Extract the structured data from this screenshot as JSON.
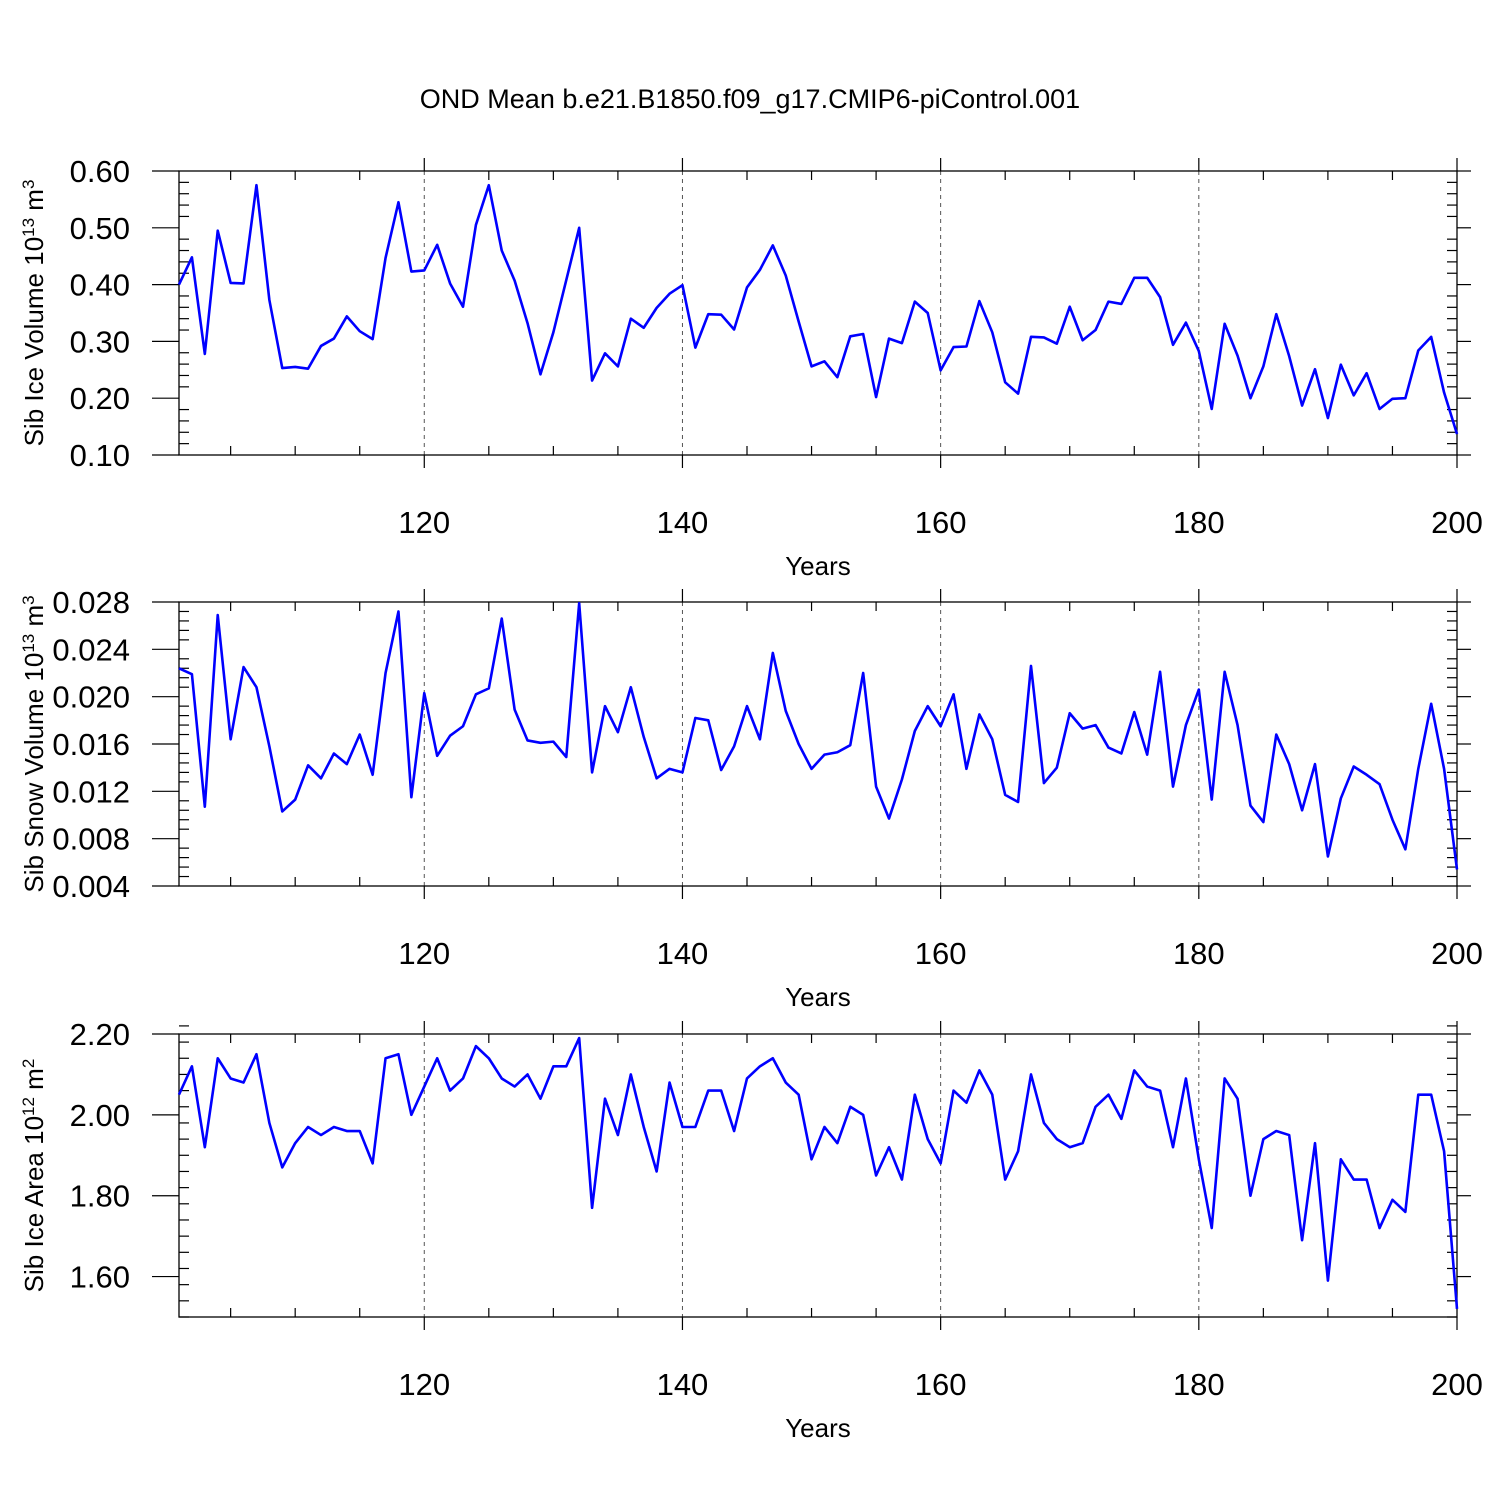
{
  "title": "OND Mean b.e21.B1850.f09_g17.CMIP6-piControl.001",
  "chart_data": [
    {
      "type": "line",
      "xlabel": "Years",
      "ylabel": "Sib Ice Volume 10",
      "ylabel_exp": "13",
      "ylabel_unit": "m",
      "ylabel_unit_exp": "3",
      "xlim": [
        101,
        200
      ],
      "ylim": [
        0.1,
        0.6
      ],
      "xticks": [
        120,
        140,
        160,
        180,
        200
      ],
      "yticks": [
        "0.10",
        "0.20",
        "0.30",
        "0.40",
        "0.50",
        "0.60"
      ],
      "x_start": 101,
      "series": [
        {
          "color": "#0000ff",
          "values": [
            0.4,
            0.448,
            0.278,
            0.495,
            0.403,
            0.402,
            0.575,
            0.373,
            0.253,
            0.255,
            0.252,
            0.292,
            0.305,
            0.344,
            0.318,
            0.304,
            0.447,
            0.545,
            0.423,
            0.425,
            0.47,
            0.402,
            0.361,
            0.505,
            0.575,
            0.46,
            0.407,
            0.332,
            0.242,
            0.316,
            0.408,
            0.5,
            0.231,
            0.279,
            0.256,
            0.34,
            0.324,
            0.359,
            0.384,
            0.399,
            0.289,
            0.348,
            0.347,
            0.321,
            0.395,
            0.426,
            0.469,
            0.416,
            0.335,
            0.256,
            0.265,
            0.237,
            0.309,
            0.313,
            0.202,
            0.305,
            0.297,
            0.37,
            0.35,
            0.249,
            0.29,
            0.291,
            0.371,
            0.316,
            0.228,
            0.208,
            0.308,
            0.307,
            0.296,
            0.361,
            0.302,
            0.32,
            0.37,
            0.366,
            0.412,
            0.412,
            0.378,
            0.294,
            0.333,
            0.283,
            0.181,
            0.331,
            0.275,
            0.2,
            0.256,
            0.348,
            0.274,
            0.187,
            0.251,
            0.165,
            0.259,
            0.205,
            0.244,
            0.181,
            0.199,
            0.2,
            0.284,
            0.308,
            0.21,
            0.137
          ]
        }
      ]
    },
    {
      "type": "line",
      "xlabel": "Years",
      "ylabel": "Sib Snow Volume 10",
      "ylabel_exp": "13",
      "ylabel_unit": "m",
      "ylabel_unit_exp": "3",
      "xlim": [
        101,
        200
      ],
      "ylim": [
        0.004,
        0.028
      ],
      "xticks": [
        120,
        140,
        160,
        180,
        200
      ],
      "yticks": [
        "0.004",
        "0.008",
        "0.012",
        "0.016",
        "0.020",
        "0.024",
        "0.028"
      ],
      "x_start": 101,
      "series": [
        {
          "color": "#0000ff",
          "values": [
            0.0224,
            0.0219,
            0.0107,
            0.0269,
            0.0164,
            0.0225,
            0.0208,
            0.0158,
            0.0103,
            0.0113,
            0.0142,
            0.0131,
            0.0152,
            0.0143,
            0.0168,
            0.0134,
            0.022,
            0.0272,
            0.0115,
            0.0203,
            0.015,
            0.0167,
            0.0175,
            0.0202,
            0.0207,
            0.0266,
            0.0189,
            0.0163,
            0.0161,
            0.0162,
            0.0149,
            0.0279,
            0.0136,
            0.0192,
            0.017,
            0.0208,
            0.0166,
            0.0131,
            0.0139,
            0.0136,
            0.0182,
            0.018,
            0.0138,
            0.0158,
            0.0192,
            0.0164,
            0.0237,
            0.0188,
            0.016,
            0.0139,
            0.0151,
            0.0153,
            0.0159,
            0.022,
            0.0124,
            0.0097,
            0.013,
            0.0171,
            0.0192,
            0.0175,
            0.0202,
            0.0139,
            0.0185,
            0.0164,
            0.0117,
            0.0111,
            0.0226,
            0.0127,
            0.014,
            0.0186,
            0.0173,
            0.0176,
            0.0157,
            0.0152,
            0.0187,
            0.0151,
            0.0221,
            0.0124,
            0.0176,
            0.0206,
            0.0113,
            0.0221,
            0.0176,
            0.0108,
            0.0094,
            0.0168,
            0.0143,
            0.0104,
            0.0143,
            0.0065,
            0.0114,
            0.0141,
            0.0134,
            0.0126,
            0.0096,
            0.0071,
            0.0139,
            0.0194,
            0.0139,
            0.0054
          ]
        }
      ]
    },
    {
      "type": "line",
      "xlabel": "Years",
      "ylabel": "Sib Ice Area 10",
      "ylabel_exp": "12",
      "ylabel_unit": "m",
      "ylabel_unit_exp": "2",
      "xlim": [
        101,
        200
      ],
      "ylim": [
        1.5,
        2.2
      ],
      "xticks": [
        120,
        140,
        160,
        180,
        200
      ],
      "yticks": [
        "1.60",
        "1.80",
        "2.00",
        "2.20"
      ],
      "x_start": 101,
      "series": [
        {
          "color": "#0000ff",
          "values": [
            2.05,
            2.12,
            1.92,
            2.14,
            2.09,
            2.08,
            2.15,
            1.98,
            1.87,
            1.93,
            1.97,
            1.95,
            1.97,
            1.96,
            1.96,
            1.88,
            2.14,
            2.15,
            2.0,
            2.07,
            2.14,
            2.06,
            2.09,
            2.17,
            2.14,
            2.09,
            2.07,
            2.1,
            2.04,
            2.12,
            2.12,
            2.19,
            1.77,
            2.04,
            1.95,
            2.1,
            1.97,
            1.86,
            2.08,
            1.97,
            1.97,
            2.06,
            2.06,
            1.96,
            2.09,
            2.12,
            2.14,
            2.08,
            2.05,
            1.89,
            1.97,
            1.93,
            2.02,
            2.0,
            1.85,
            1.92,
            1.84,
            2.05,
            1.94,
            1.88,
            2.06,
            2.03,
            2.11,
            2.05,
            1.84,
            1.91,
            2.1,
            1.98,
            1.94,
            1.92,
            1.93,
            2.02,
            2.05,
            1.99,
            2.11,
            2.07,
            2.06,
            1.92,
            2.09,
            1.89,
            1.72,
            2.09,
            2.04,
            1.8,
            1.94,
            1.96,
            1.95,
            1.69,
            1.93,
            1.59,
            1.89,
            1.84,
            1.84,
            1.72,
            1.79,
            1.76,
            2.05,
            2.05,
            1.91,
            1.52
          ]
        }
      ]
    }
  ]
}
